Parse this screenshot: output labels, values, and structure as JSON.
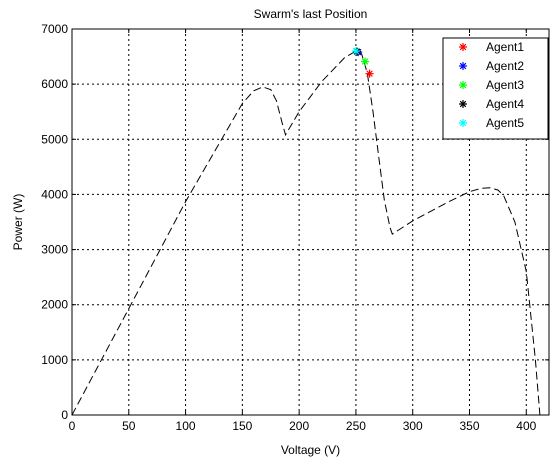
{
  "chart_data": {
    "type": "line",
    "title": "Swarm's last Position",
    "xlabel": "Voltage (V)",
    "ylabel": "Power (W)",
    "xlim": [
      0,
      420
    ],
    "ylim": [
      0,
      7000
    ],
    "xticks": [
      0,
      50,
      100,
      150,
      200,
      250,
      300,
      350,
      400
    ],
    "yticks": [
      0,
      1000,
      2000,
      3000,
      4000,
      5000,
      6000,
      7000
    ],
    "grid": true,
    "legend_position": "top-right",
    "curve": {
      "style": "dashed",
      "color": "#000000",
      "x": [
        0,
        50,
        100,
        150,
        160,
        168,
        175,
        180,
        185,
        188,
        200,
        220,
        240,
        250,
        255,
        260,
        265,
        270,
        275,
        280,
        282,
        300,
        330,
        350,
        360,
        368,
        375,
        380,
        390,
        400,
        408,
        412
      ],
      "y": [
        0,
        1930,
        3870,
        5650,
        5880,
        5950,
        5900,
        5700,
        5300,
        5080,
        5500,
        6050,
        6480,
        6600,
        6550,
        6200,
        5500,
        4700,
        3900,
        3400,
        3280,
        3520,
        3850,
        4050,
        4110,
        4120,
        4080,
        3980,
        3500,
        2600,
        1000,
        0
      ]
    },
    "series": [
      {
        "name": "Agent1",
        "color": "#ff0000",
        "marker": "*",
        "x": [
          262
        ],
        "y": [
          6190
        ]
      },
      {
        "name": "Agent2",
        "color": "#0000ff",
        "marker": "*",
        "x": [
          252
        ],
        "y": [
          6580
        ]
      },
      {
        "name": "Agent3",
        "color": "#00ff00",
        "marker": "*",
        "x": [
          258
        ],
        "y": [
          6410
        ]
      },
      {
        "name": "Agent4",
        "color": "#000000",
        "marker": "*",
        "x": [
          251
        ],
        "y": [
          6590
        ]
      },
      {
        "name": "Agent5",
        "color": "#00ffff",
        "marker": "*",
        "x": [
          250
        ],
        "y": [
          6600
        ]
      }
    ]
  }
}
